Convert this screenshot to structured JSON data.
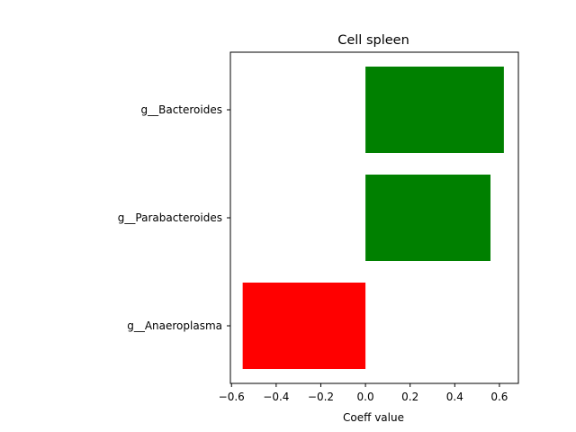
{
  "chart_data": {
    "type": "bar",
    "orientation": "horizontal",
    "title": "Cell spleen",
    "xlabel": "Coeff value",
    "ylabel": "",
    "categories": [
      "g__Bacteroides",
      "g__Parabacteroides",
      "g__Anaeroplasma"
    ],
    "values": [
      0.62,
      0.56,
      -0.55
    ],
    "bar_colors": [
      "#008000",
      "#008000",
      "#ff0000"
    ],
    "xlim": [
      -0.605,
      0.685
    ],
    "xticks": [
      -0.6,
      -0.4,
      -0.2,
      0.0,
      0.2,
      0.4,
      0.6
    ],
    "xtick_labels": [
      "−0.6",
      "−0.4",
      "−0.2",
      "0.0",
      "0.2",
      "0.4",
      "0.6"
    ],
    "grid": false,
    "legend": "none"
  }
}
